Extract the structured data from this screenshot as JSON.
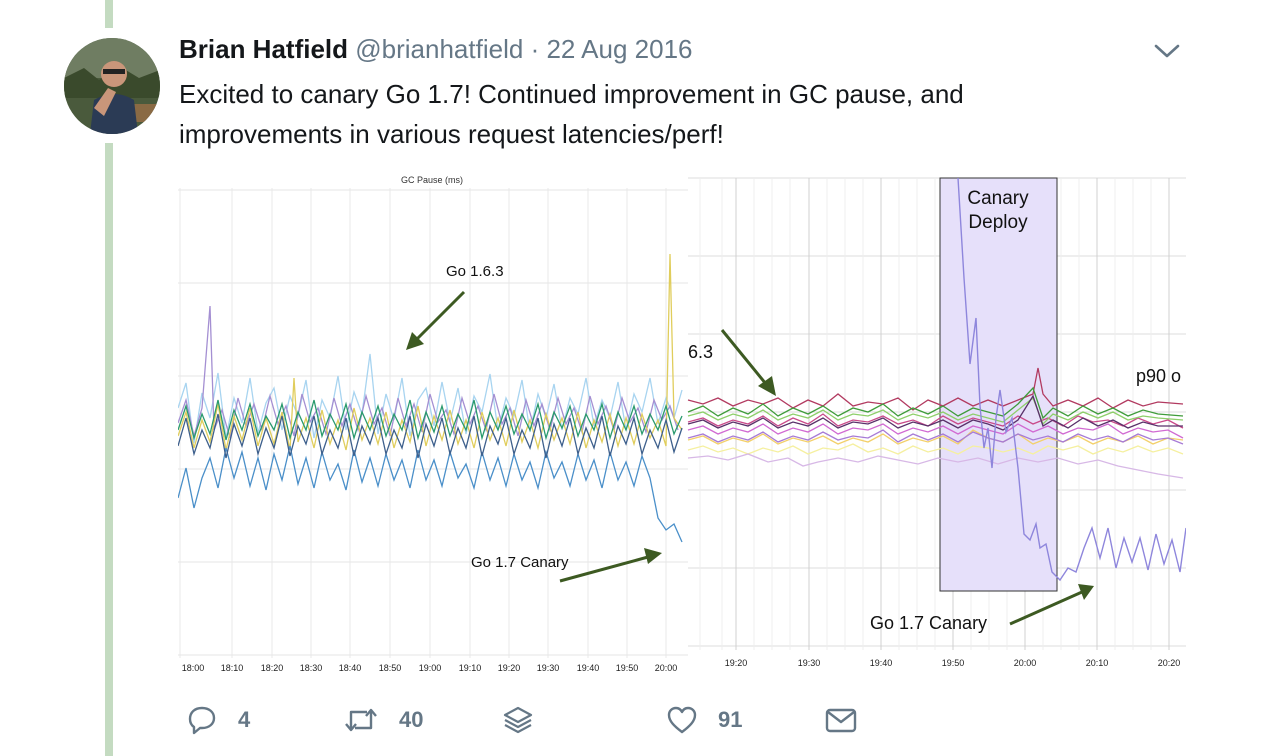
{
  "tweet": {
    "author_name": "Brian Hatfield",
    "handle": "@brianhatfield",
    "separator": "·",
    "date": "22 Aug 2016",
    "text": "Excited to canary Go 1.7! Continued improvement in GC pause, and improvements in various request latencies/perf!"
  },
  "icons": {
    "caret": "chevron-down-icon",
    "reply": "reply-icon",
    "retweet": "retweet-icon",
    "stack": "stack-icon",
    "like": "heart-icon",
    "message": "envelope-icon"
  },
  "actions": {
    "replies": "4",
    "retweets": "40",
    "likes": "91"
  },
  "media": {
    "left_chart": {
      "title": "GC Pause (ms)",
      "x_ticks": [
        "18:00",
        "18:10",
        "18:20",
        "18:30",
        "18:40",
        "18:50",
        "19:00",
        "19:10",
        "19:20",
        "19:30",
        "19:40",
        "19:50",
        "20:00"
      ],
      "annotation_old": "Go 1.6.3",
      "annotation_new": "Go 1.7 Canary"
    },
    "right_chart": {
      "x_ticks": [
        "19:20",
        "19:30",
        "19:40",
        "19:50",
        "20:00",
        "20:10",
        "20:20"
      ],
      "deploy_label_line1": "Canary",
      "deploy_label_line2": "Deploy",
      "cut_label_left": "6.3",
      "cut_label_right": "p90 o",
      "annotation_new": "Go 1.7 Canary"
    }
  },
  "colors": {
    "thread_line": "#c4dbc1",
    "arrow": "#3d5a22",
    "deploy_band": "#e6e0fa",
    "text_dark": "#14171a",
    "text_muted": "#657786"
  }
}
